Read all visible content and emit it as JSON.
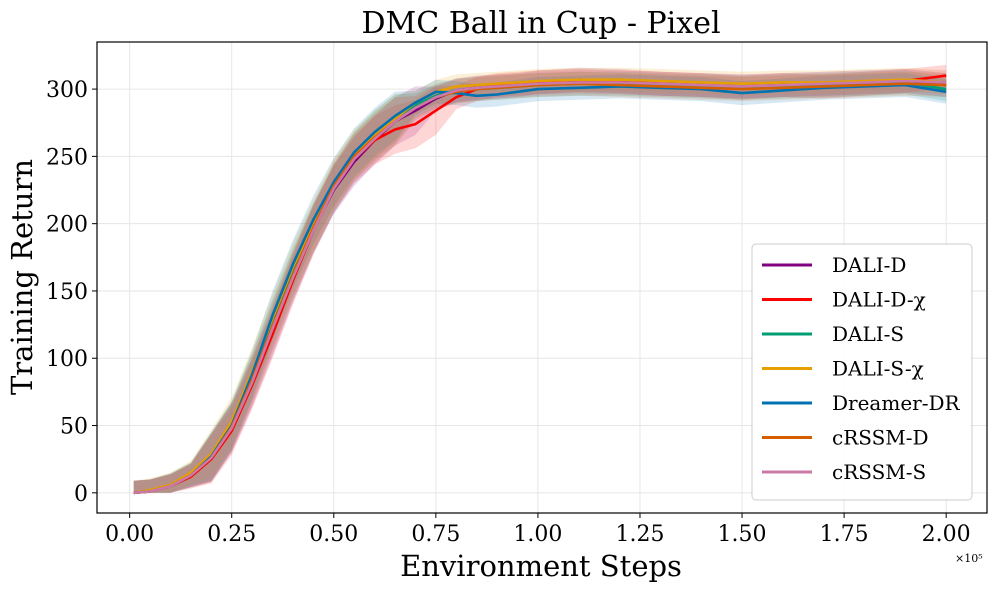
{
  "chart_data": {
    "type": "line",
    "title": "DMC Ball in Cup - Pixel",
    "xlabel": "Environment Steps",
    "ylabel": "Training Return",
    "x_offset_label": "×10⁵",
    "xlim": [
      -0.08,
      2.1
    ],
    "ylim": [
      -15,
      335
    ],
    "xticks": [
      0.0,
      0.25,
      0.5,
      0.75,
      1.0,
      1.25,
      1.5,
      1.75,
      2.0
    ],
    "xtick_labels": [
      "0.00",
      "0.25",
      "0.50",
      "0.75",
      "1.00",
      "1.25",
      "1.50",
      "1.75",
      "2.00"
    ],
    "yticks": [
      0,
      50,
      100,
      150,
      200,
      250,
      300
    ],
    "ytick_labels": [
      "0",
      "50",
      "100",
      "150",
      "200",
      "250",
      "300"
    ],
    "grid": true,
    "legend_position": "lower-right",
    "x": [
      0.01,
      0.05,
      0.1,
      0.15,
      0.2,
      0.25,
      0.3,
      0.35,
      0.4,
      0.45,
      0.5,
      0.55,
      0.6,
      0.65,
      0.7,
      0.75,
      0.8,
      0.85,
      0.9,
      0.95,
      1.0,
      1.1,
      1.2,
      1.3,
      1.4,
      1.5,
      1.6,
      1.7,
      1.8,
      1.9,
      2.0
    ],
    "band_width": 14,
    "series": [
      {
        "name": "DALI-D",
        "color": "#800080",
        "values": [
          0,
          1,
          5,
          13,
          26,
          48,
          82,
          120,
          160,
          196,
          225,
          246,
          262,
          276,
          284,
          293,
          299,
          301,
          302,
          303,
          305,
          307,
          306,
          304,
          303,
          302,
          303,
          304,
          305,
          306,
          303
        ]
      },
      {
        "name": "DALI-D-χ",
        "color": "#ff0000",
        "values": [
          0,
          1,
          5,
          12,
          25,
          46,
          80,
          118,
          158,
          195,
          226,
          248,
          262,
          270,
          274,
          284,
          294,
          300,
          303,
          304,
          305,
          306,
          305,
          304,
          303,
          301,
          303,
          302,
          304,
          306,
          310
        ]
      },
      {
        "name": "DALI-S",
        "color": "#009e73",
        "values": [
          0,
          1,
          6,
          14,
          27,
          50,
          86,
          126,
          164,
          197,
          226,
          250,
          266,
          278,
          288,
          295,
          299,
          300,
          301,
          302,
          303,
          304,
          304,
          303,
          302,
          301,
          302,
          303,
          304,
          305,
          300
        ]
      },
      {
        "name": "DALI-S-χ",
        "color": "#e69f00",
        "values": [
          0,
          2,
          6,
          15,
          29,
          53,
          90,
          130,
          168,
          200,
          230,
          252,
          266,
          278,
          290,
          298,
          302,
          303,
          304,
          305,
          306,
          307,
          307,
          306,
          305,
          304,
          305,
          305,
          306,
          307,
          305
        ]
      },
      {
        "name": "Dreamer-DR",
        "color": "#0072b2",
        "values": [
          0,
          1,
          5,
          13,
          27,
          50,
          88,
          132,
          170,
          203,
          231,
          253,
          268,
          280,
          290,
          298,
          297,
          295,
          296,
          298,
          300,
          301,
          302,
          301,
          300,
          297,
          299,
          301,
          302,
          303,
          298
        ]
      },
      {
        "name": "cRSSM-D",
        "color": "#d55e00",
        "values": [
          0,
          1,
          5,
          13,
          26,
          49,
          84,
          124,
          162,
          197,
          228,
          250,
          264,
          276,
          286,
          294,
          298,
          300,
          301,
          302,
          303,
          304,
          303,
          302,
          301,
          300,
          301,
          302,
          303,
          304,
          303
        ]
      },
      {
        "name": "cRSSM-S",
        "color": "#cc79a7",
        "values": [
          0,
          1,
          5,
          13,
          26,
          48,
          82,
          122,
          160,
          195,
          226,
          248,
          263,
          276,
          286,
          294,
          299,
          301,
          302,
          303,
          304,
          305,
          305,
          304,
          303,
          302,
          303,
          304,
          305,
          306,
          305
        ]
      }
    ]
  }
}
